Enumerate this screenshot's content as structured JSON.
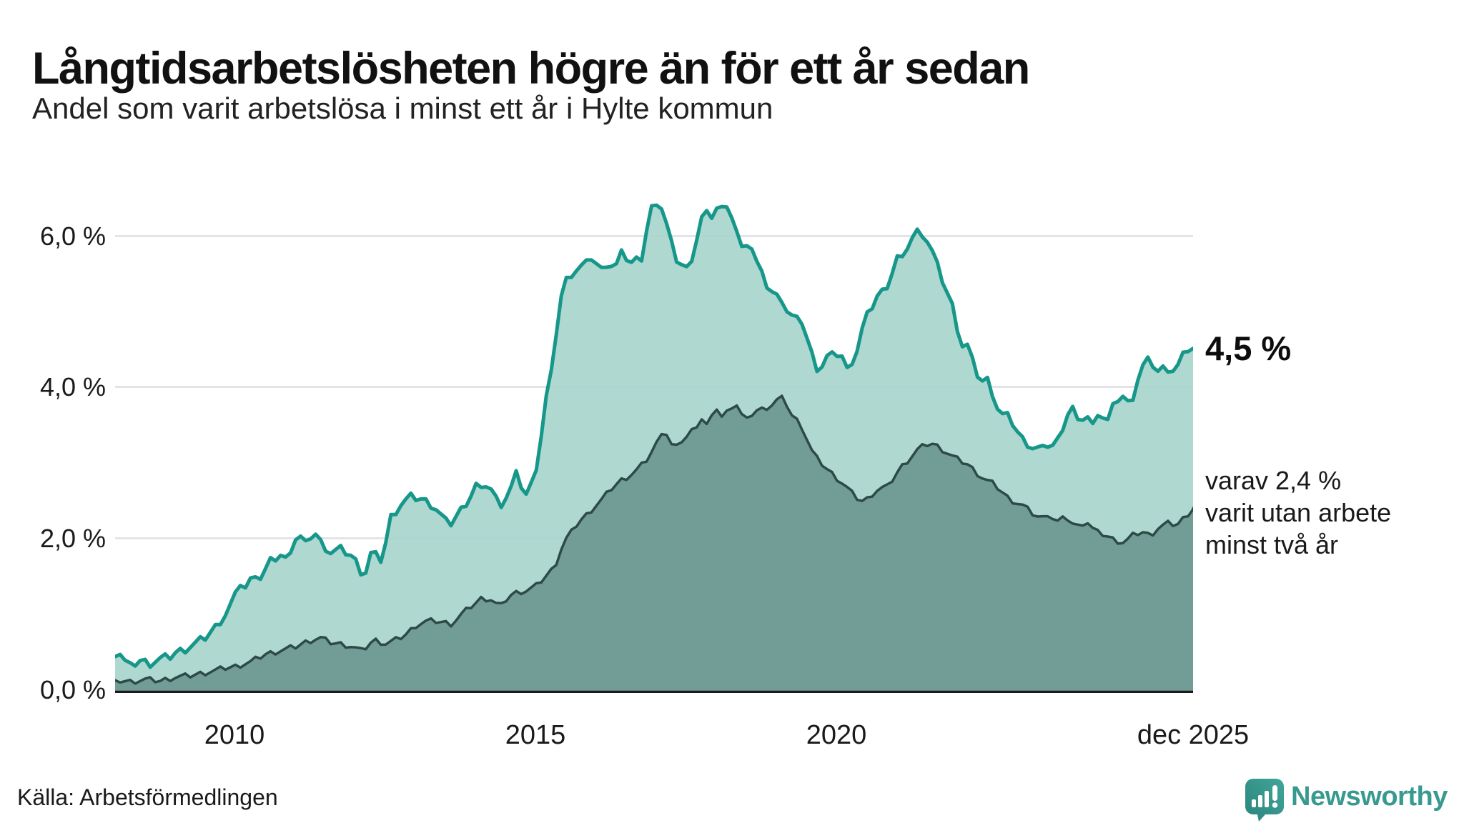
{
  "header": {
    "title": "Långtidsarbetslösheten högre än för ett år sedan",
    "subtitle": "Andel som varit arbetslösa i minst ett år i Hylte kommun"
  },
  "annotations": {
    "latest_value": "4,5 %",
    "secondary_line1": "varav 2,4 %",
    "secondary_line2": "varit utan arbete",
    "secondary_line3": "minst två år"
  },
  "footer": {
    "source": "Källa: Arbetsförmedlingen",
    "brand_name": "Newsworthy"
  },
  "colors": {
    "line_one_year": "#16978a",
    "fill_one_year": "#a9d5ce",
    "line_two_years": "#2d4b46",
    "fill_two_years": "#6f9a94",
    "gridline": "#e4e4e8",
    "axis": "#1a1a1a",
    "brand_teal": "#38998f",
    "text": "#1a1a1a"
  },
  "chart_data": {
    "type": "area",
    "title": "Långtidsarbetslösheten högre än för ett år sedan",
    "subtitle": "Andel som varit arbetslösa i minst ett år i Hylte kommun",
    "unit": "%",
    "x_range": [
      2008.0,
      2025.917
    ],
    "y_range": [
      0,
      6.55
    ],
    "grid": "horizontal",
    "legend_position": "none",
    "y_ticks": [
      {
        "label": "6,0 %",
        "value": 6.0
      },
      {
        "label": "4,0 %",
        "value": 4.0
      },
      {
        "label": "2,0 %",
        "value": 2.0
      },
      {
        "label": "0,0 %",
        "value": 0.0
      }
    ],
    "x_ticks": [
      {
        "label": "2010",
        "value": 2010
      },
      {
        "label": "2015",
        "value": 2015
      },
      {
        "label": "2020",
        "value": 2020
      },
      {
        "label": "dec 2025",
        "value": 2025.917
      }
    ],
    "series": [
      {
        "name": "Arbetslösa minst ett år",
        "end_label": "4,5 %",
        "end_value": 4.5,
        "line_color": "#16978a",
        "fill_color": "#a9d5ce",
        "points": [
          [
            2008.0,
            0.45
          ],
          [
            2008.08,
            0.5
          ],
          [
            2008.17,
            0.38
          ],
          [
            2008.25,
            0.32
          ],
          [
            2008.42,
            0.4
          ],
          [
            2008.58,
            0.36
          ],
          [
            2008.75,
            0.42
          ],
          [
            2008.92,
            0.45
          ],
          [
            2009.0,
            0.5
          ],
          [
            2009.17,
            0.55
          ],
          [
            2009.33,
            0.62
          ],
          [
            2009.5,
            0.7
          ],
          [
            2009.67,
            0.84
          ],
          [
            2009.83,
            1.0
          ],
          [
            2010.0,
            1.25
          ],
          [
            2010.08,
            1.42
          ],
          [
            2010.17,
            1.35
          ],
          [
            2010.33,
            1.55
          ],
          [
            2010.42,
            1.48
          ],
          [
            2010.58,
            1.7
          ],
          [
            2010.75,
            1.78
          ],
          [
            2010.83,
            1.72
          ],
          [
            2011.0,
            2.0
          ],
          [
            2011.08,
            2.02
          ],
          [
            2011.17,
            1.92
          ],
          [
            2011.3,
            2.1
          ],
          [
            2011.42,
            1.95
          ],
          [
            2011.58,
            1.82
          ],
          [
            2011.75,
            1.86
          ],
          [
            2011.92,
            1.78
          ],
          [
            2012.0,
            1.7
          ],
          [
            2012.14,
            1.49
          ],
          [
            2012.25,
            1.8
          ],
          [
            2012.33,
            1.78
          ],
          [
            2012.42,
            1.72
          ],
          [
            2012.5,
            1.95
          ],
          [
            2012.58,
            2.28
          ],
          [
            2012.75,
            2.45
          ],
          [
            2012.9,
            2.55
          ],
          [
            2013.1,
            2.52
          ],
          [
            2013.25,
            2.45
          ],
          [
            2013.33,
            2.4
          ],
          [
            2013.5,
            2.22
          ],
          [
            2013.58,
            2.2
          ],
          [
            2013.75,
            2.38
          ],
          [
            2013.9,
            2.55
          ],
          [
            2014.0,
            2.71
          ],
          [
            2014.08,
            2.62
          ],
          [
            2014.19,
            2.74
          ],
          [
            2014.3,
            2.58
          ],
          [
            2014.39,
            2.43
          ],
          [
            2014.5,
            2.55
          ],
          [
            2014.6,
            2.7
          ],
          [
            2014.67,
            2.85
          ],
          [
            2014.75,
            2.7
          ],
          [
            2014.83,
            2.58
          ],
          [
            2014.92,
            2.71
          ],
          [
            2015.0,
            2.95
          ],
          [
            2015.07,
            3.21
          ],
          [
            2015.13,
            3.9
          ],
          [
            2015.2,
            3.83
          ],
          [
            2015.3,
            4.5
          ],
          [
            2015.4,
            5.15
          ],
          [
            2015.5,
            5.4
          ],
          [
            2015.6,
            5.5
          ],
          [
            2015.75,
            5.58
          ],
          [
            2015.83,
            5.61
          ],
          [
            2015.94,
            5.72
          ],
          [
            2016.06,
            5.51
          ],
          [
            2016.2,
            5.65
          ],
          [
            2016.3,
            5.54
          ],
          [
            2016.42,
            5.75
          ],
          [
            2016.5,
            5.69
          ],
          [
            2016.6,
            5.62
          ],
          [
            2016.67,
            5.67
          ],
          [
            2016.75,
            5.7
          ],
          [
            2016.9,
            6.35
          ],
          [
            2016.96,
            6.38
          ],
          [
            2017.02,
            6.31
          ],
          [
            2017.1,
            6.38
          ],
          [
            2017.22,
            5.95
          ],
          [
            2017.34,
            5.67
          ],
          [
            2017.5,
            5.56
          ],
          [
            2017.58,
            5.58
          ],
          [
            2017.67,
            5.97
          ],
          [
            2017.75,
            6.23
          ],
          [
            2017.83,
            6.28
          ],
          [
            2017.9,
            6.24
          ],
          [
            2018.0,
            6.36
          ],
          [
            2018.08,
            6.35
          ],
          [
            2018.21,
            6.29
          ],
          [
            2018.27,
            6.23
          ],
          [
            2018.33,
            6.05
          ],
          [
            2018.4,
            5.79
          ],
          [
            2018.5,
            5.9
          ],
          [
            2018.58,
            5.83
          ],
          [
            2018.7,
            5.55
          ],
          [
            2018.85,
            5.3
          ],
          [
            2019.0,
            5.18
          ],
          [
            2019.1,
            5.15
          ],
          [
            2019.17,
            4.99
          ],
          [
            2019.3,
            4.88
          ],
          [
            2019.42,
            4.85
          ],
          [
            2019.55,
            4.5
          ],
          [
            2019.63,
            4.3
          ],
          [
            2019.7,
            4.2
          ],
          [
            2019.83,
            4.39
          ],
          [
            2019.95,
            4.41
          ],
          [
            2020.06,
            4.45
          ],
          [
            2020.17,
            4.21
          ],
          [
            2020.33,
            4.47
          ],
          [
            2020.45,
            4.86
          ],
          [
            2020.55,
            5.0
          ],
          [
            2020.68,
            5.21
          ],
          [
            2020.8,
            5.27
          ],
          [
            2020.92,
            5.51
          ],
          [
            2021.0,
            5.7
          ],
          [
            2021.08,
            5.65
          ],
          [
            2021.2,
            5.91
          ],
          [
            2021.35,
            6.05
          ],
          [
            2021.45,
            6.0
          ],
          [
            2021.6,
            5.74
          ],
          [
            2021.72,
            5.46
          ],
          [
            2021.92,
            5.05
          ],
          [
            2022.07,
            4.53
          ],
          [
            2022.15,
            4.58
          ],
          [
            2022.31,
            4.18
          ],
          [
            2022.43,
            4.06
          ],
          [
            2022.51,
            4.09
          ],
          [
            2022.7,
            3.64
          ],
          [
            2022.86,
            3.6
          ],
          [
            2023.06,
            3.32
          ],
          [
            2023.25,
            3.2
          ],
          [
            2023.45,
            3.17
          ],
          [
            2023.55,
            3.3
          ],
          [
            2023.61,
            3.17
          ],
          [
            2023.73,
            3.43
          ],
          [
            2023.9,
            3.78
          ],
          [
            2023.98,
            3.5
          ],
          [
            2024.14,
            3.64
          ],
          [
            2024.25,
            3.48
          ],
          [
            2024.33,
            3.67
          ],
          [
            2024.42,
            3.6
          ],
          [
            2024.49,
            3.53
          ],
          [
            2024.63,
            3.82
          ],
          [
            2024.75,
            3.87
          ],
          [
            2024.87,
            3.74
          ],
          [
            2025.0,
            4.1
          ],
          [
            2025.1,
            4.3
          ],
          [
            2025.19,
            4.35
          ],
          [
            2025.33,
            4.2
          ],
          [
            2025.45,
            4.25
          ],
          [
            2025.55,
            4.23
          ],
          [
            2025.62,
            4.2
          ],
          [
            2025.74,
            4.39
          ],
          [
            2025.86,
            4.52
          ],
          [
            2025.917,
            4.5
          ]
        ]
      },
      {
        "name": "Arbetslösa minst två år",
        "end_label": "varav 2,4 % varit utan arbete minst två år",
        "end_value": 2.4,
        "line_color": "#2d4b46",
        "fill_color": "#6f9a94",
        "points": [
          [
            2008.0,
            0.14
          ],
          [
            2008.25,
            0.12
          ],
          [
            2008.5,
            0.15
          ],
          [
            2008.75,
            0.13
          ],
          [
            2009.0,
            0.18
          ],
          [
            2009.25,
            0.2
          ],
          [
            2009.5,
            0.24
          ],
          [
            2009.67,
            0.27
          ],
          [
            2009.83,
            0.3
          ],
          [
            2010.0,
            0.32
          ],
          [
            2010.25,
            0.38
          ],
          [
            2010.5,
            0.48
          ],
          [
            2010.75,
            0.53
          ],
          [
            2011.0,
            0.58
          ],
          [
            2011.2,
            0.65
          ],
          [
            2011.4,
            0.7
          ],
          [
            2011.6,
            0.63
          ],
          [
            2011.8,
            0.61
          ],
          [
            2011.95,
            0.58
          ],
          [
            2012.1,
            0.52
          ],
          [
            2012.3,
            0.67
          ],
          [
            2012.5,
            0.62
          ],
          [
            2012.7,
            0.68
          ],
          [
            2012.85,
            0.75
          ],
          [
            2013.0,
            0.86
          ],
          [
            2013.15,
            0.91
          ],
          [
            2013.3,
            0.92
          ],
          [
            2013.45,
            0.9
          ],
          [
            2013.6,
            0.88
          ],
          [
            2013.75,
            1.0
          ],
          [
            2013.9,
            1.1
          ],
          [
            2014.1,
            1.22
          ],
          [
            2014.25,
            1.2
          ],
          [
            2014.4,
            1.1
          ],
          [
            2014.55,
            1.25
          ],
          [
            2014.7,
            1.3
          ],
          [
            2014.85,
            1.32
          ],
          [
            2015.0,
            1.38
          ],
          [
            2015.15,
            1.5
          ],
          [
            2015.3,
            1.62
          ],
          [
            2015.46,
            1.96
          ],
          [
            2015.6,
            2.1
          ],
          [
            2015.7,
            2.22
          ],
          [
            2015.85,
            2.32
          ],
          [
            2015.94,
            2.4
          ],
          [
            2016.1,
            2.52
          ],
          [
            2016.25,
            2.66
          ],
          [
            2016.4,
            2.76
          ],
          [
            2016.57,
            2.84
          ],
          [
            2016.7,
            2.92
          ],
          [
            2016.85,
            3.05
          ],
          [
            2017.0,
            3.25
          ],
          [
            2017.12,
            3.48
          ],
          [
            2017.2,
            3.3
          ],
          [
            2017.3,
            3.16
          ],
          [
            2017.4,
            3.28
          ],
          [
            2017.5,
            3.34
          ],
          [
            2017.62,
            3.45
          ],
          [
            2017.75,
            3.58
          ],
          [
            2017.85,
            3.48
          ],
          [
            2018.0,
            3.72
          ],
          [
            2018.1,
            3.58
          ],
          [
            2018.2,
            3.7
          ],
          [
            2018.31,
            3.8
          ],
          [
            2018.42,
            3.62
          ],
          [
            2018.51,
            3.55
          ],
          [
            2018.62,
            3.68
          ],
          [
            2018.75,
            3.7
          ],
          [
            2018.9,
            3.75
          ],
          [
            2019.0,
            3.82
          ],
          [
            2019.11,
            3.85
          ],
          [
            2019.25,
            3.62
          ],
          [
            2019.4,
            3.5
          ],
          [
            2019.61,
            3.1
          ],
          [
            2019.85,
            2.9
          ],
          [
            2020.12,
            2.71
          ],
          [
            2020.3,
            2.55
          ],
          [
            2020.45,
            2.48
          ],
          [
            2020.6,
            2.6
          ],
          [
            2020.7,
            2.66
          ],
          [
            2020.84,
            2.68
          ],
          [
            2021.04,
            2.92
          ],
          [
            2021.2,
            3.05
          ],
          [
            2021.35,
            3.18
          ],
          [
            2021.55,
            3.26
          ],
          [
            2021.7,
            3.2
          ],
          [
            2021.92,
            3.08
          ],
          [
            2022.05,
            3.02
          ],
          [
            2022.15,
            2.99
          ],
          [
            2022.3,
            2.88
          ],
          [
            2022.45,
            2.78
          ],
          [
            2022.62,
            2.71
          ],
          [
            2022.86,
            2.52
          ],
          [
            2023.1,
            2.43
          ],
          [
            2023.25,
            2.33
          ],
          [
            2023.4,
            2.26
          ],
          [
            2023.5,
            2.33
          ],
          [
            2023.65,
            2.22
          ],
          [
            2023.81,
            2.28
          ],
          [
            2023.98,
            2.15
          ],
          [
            2024.14,
            2.24
          ],
          [
            2024.29,
            2.09
          ],
          [
            2024.45,
            2.05
          ],
          [
            2024.61,
            1.98
          ],
          [
            2024.77,
            1.95
          ],
          [
            2024.93,
            2.05
          ],
          [
            2025.07,
            2.09
          ],
          [
            2025.2,
            2.04
          ],
          [
            2025.35,
            2.15
          ],
          [
            2025.5,
            2.2
          ],
          [
            2025.65,
            2.18
          ],
          [
            2025.8,
            2.3
          ],
          [
            2025.917,
            2.4
          ]
        ]
      }
    ]
  }
}
